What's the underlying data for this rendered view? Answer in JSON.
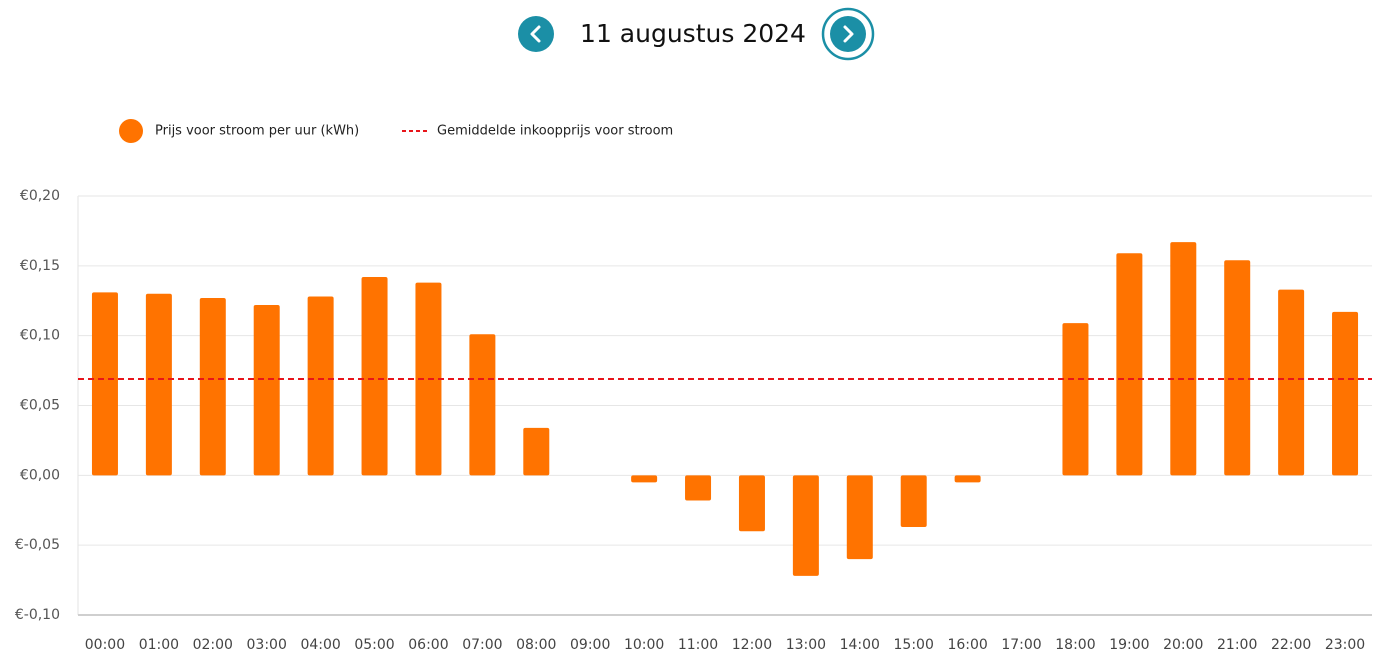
{
  "header": {
    "date": "11 augustus 2024"
  },
  "chart_data": {
    "type": "bar",
    "categories": [
      "00:00",
      "01:00",
      "02:00",
      "03:00",
      "04:00",
      "05:00",
      "06:00",
      "07:00",
      "08:00",
      "09:00",
      "10:00",
      "11:00",
      "12:00",
      "13:00",
      "14:00",
      "15:00",
      "16:00",
      "17:00",
      "18:00",
      "19:00",
      "20:00",
      "21:00",
      "22:00",
      "23:00"
    ],
    "series": [
      {
        "name": "Prijs voor stroom per uur (kWh)",
        "color": "#ff7300",
        "values": [
          0.131,
          0.13,
          0.127,
          0.122,
          0.128,
          0.142,
          0.138,
          0.101,
          0.034,
          0,
          -0.005,
          -0.018,
          -0.04,
          -0.072,
          -0.06,
          -0.037,
          -0.005,
          0,
          0.109,
          0.159,
          0.167,
          0.154,
          0.133,
          0.117
        ]
      }
    ],
    "reference_line": {
      "name": "Gemiddelde inkoopprijs voor stroom",
      "value": 0.069,
      "color": "#e8141a"
    },
    "ylim": [
      -0.1,
      0.2
    ],
    "yticks": [
      {
        "value": -0.1,
        "label": "€-0,10"
      },
      {
        "value": -0.05,
        "label": "€-0,05"
      },
      {
        "value": 0,
        "label": "€0,00"
      },
      {
        "value": 0.05,
        "label": "€0,05"
      },
      {
        "value": 0.1,
        "label": "€0,10"
      },
      {
        "value": 0.15,
        "label": "€0,15"
      },
      {
        "value": 0.2,
        "label": "€0,20"
      }
    ],
    "grid": true
  }
}
